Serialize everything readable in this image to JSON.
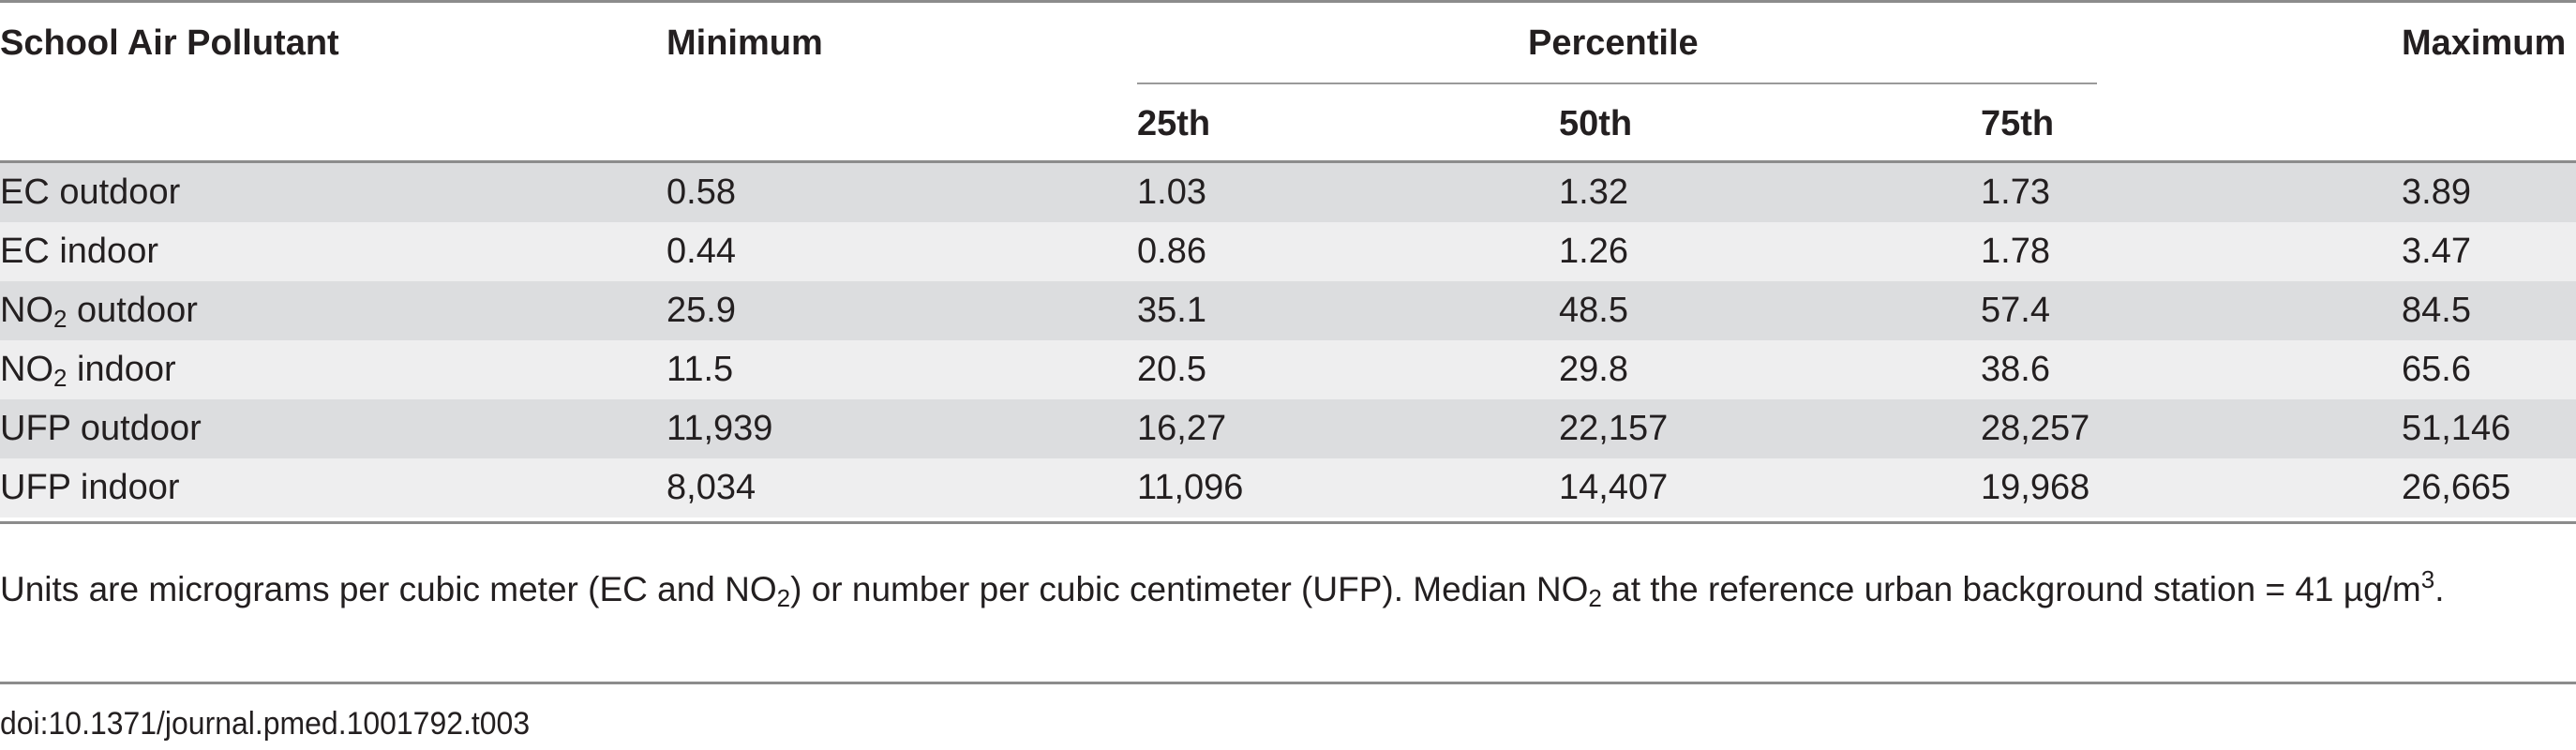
{
  "table": {
    "headers": {
      "pollutant": "School Air Pollutant",
      "minimum": "Minimum",
      "percentile": "Percentile",
      "p25": "25th",
      "p50": "50th",
      "p75": "75th",
      "maximum": "Maximum"
    },
    "rows": [
      {
        "name_main": "EC outdoor",
        "name_sub": "",
        "name_rest": "",
        "minimum": "0.58",
        "p25": "1.03",
        "p50": "1.32",
        "p75": "1.73",
        "maximum": "3.89"
      },
      {
        "name_main": "EC indoor",
        "name_sub": "",
        "name_rest": "",
        "minimum": "0.44",
        "p25": "0.86",
        "p50": "1.26",
        "p75": "1.78",
        "maximum": "3.47"
      },
      {
        "name_main": "NO",
        "name_sub": "2",
        "name_rest": " outdoor",
        "minimum": "25.9",
        "p25": "35.1",
        "p50": "48.5",
        "p75": "57.4",
        "maximum": "84.5"
      },
      {
        "name_main": "NO",
        "name_sub": "2",
        "name_rest": " indoor",
        "minimum": "11.5",
        "p25": "20.5",
        "p50": "29.8",
        "p75": "38.6",
        "maximum": "65.6"
      },
      {
        "name_main": "UFP outdoor",
        "name_sub": "",
        "name_rest": "",
        "minimum": "11,939",
        "p25": "16,27",
        "p50": "22,157",
        "p75": "28,257",
        "maximum": "51,146"
      },
      {
        "name_main": "UFP indoor",
        "name_sub": "",
        "name_rest": "",
        "minimum": "8,034",
        "p25": "11,096",
        "p50": "14,407",
        "p75": "19,968",
        "maximum": "26,665"
      }
    ]
  },
  "footnote": {
    "part1": "Units are micrograms per cubic meter (EC and NO",
    "sub1": "2",
    "part2": ") or number per cubic centimeter (UFP). Median NO",
    "sub2": "2",
    "part3": " at the reference urban background station = 41 µg/m",
    "sup1": "3",
    "part4": "."
  },
  "doi": "doi:10.1371/journal.pmed.1001792.t003"
}
